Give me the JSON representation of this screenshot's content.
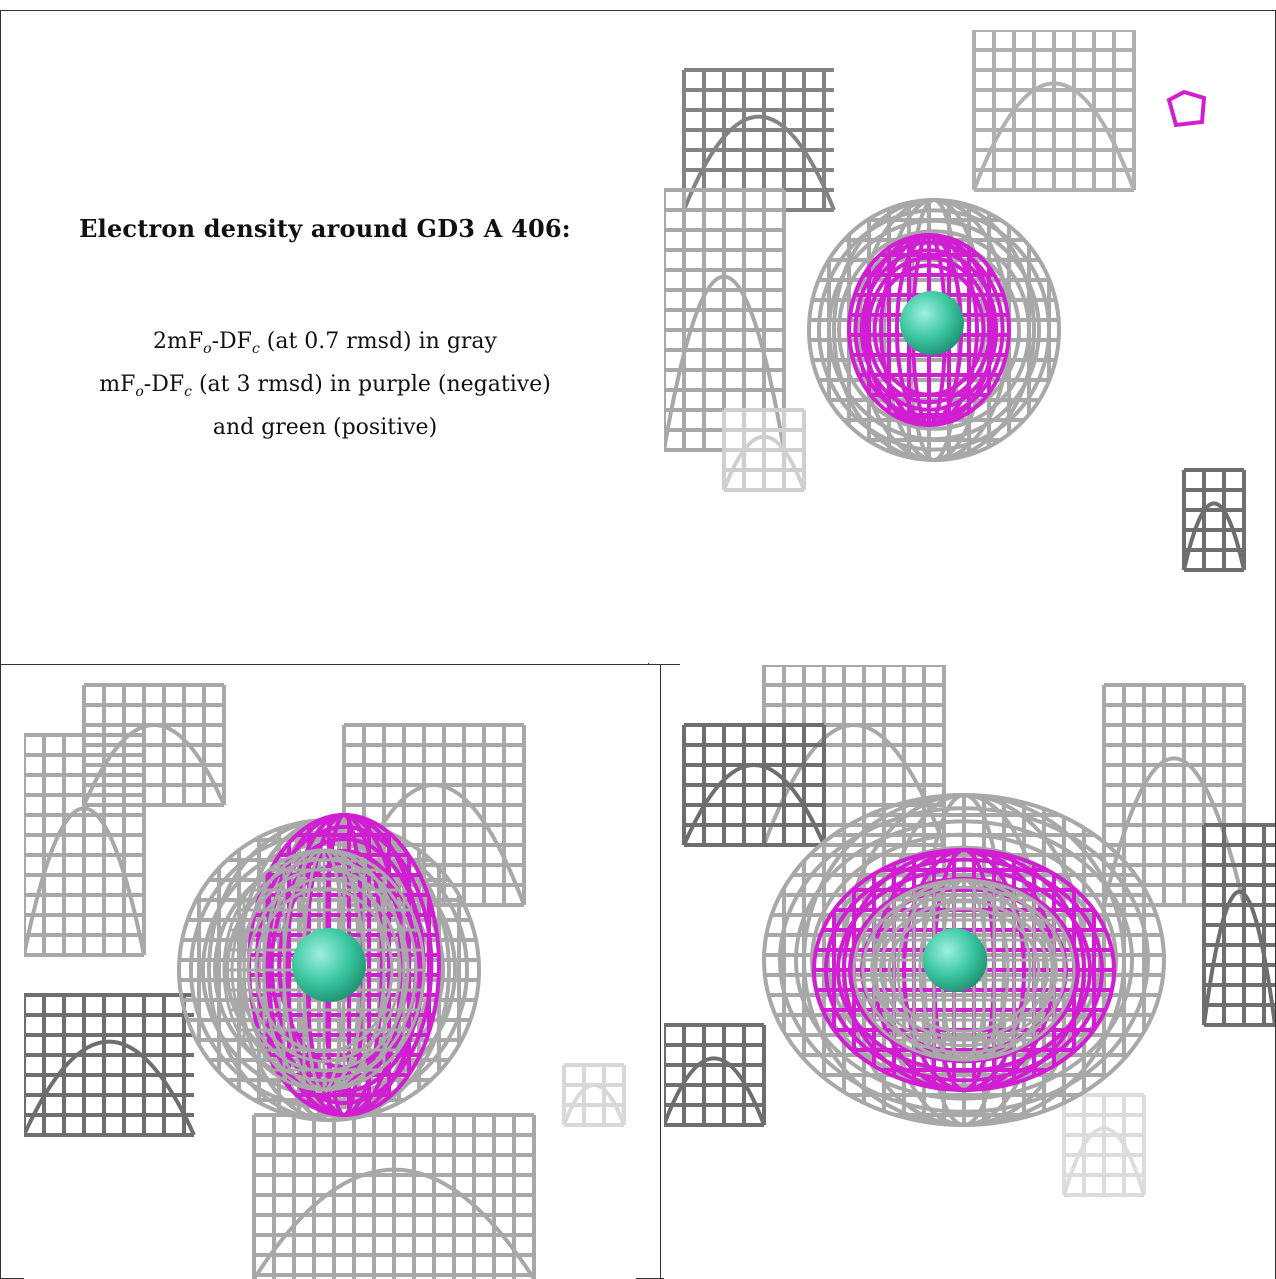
{
  "figure": {
    "caption": {
      "title": "Electron density around GD3 A 406:",
      "line1_pre": "2mF",
      "line1_sub1": "o",
      "line1_mid": "-DF",
      "line1_sub2": "c",
      "line1_post": " (at 0.7 rmsd) in gray",
      "line2_pre": "mF",
      "line2_sub1": "o",
      "line2_mid": "-DF",
      "line2_sub2": "c",
      "line2_post": " (at 3 rmsd) in purple (negative)",
      "line3": "and green (positive)"
    },
    "views": [
      {
        "name": "view-top-right"
      },
      {
        "name": "view-bottom-left"
      },
      {
        "name": "view-bottom-right"
      }
    ],
    "colors": {
      "map_2fofc": "#a8a8a8",
      "map_2fofc_dark": "#6e6e6e",
      "map_fofc_negative": "#d21ed2",
      "atom_gd": "#3cc8a0"
    }
  }
}
